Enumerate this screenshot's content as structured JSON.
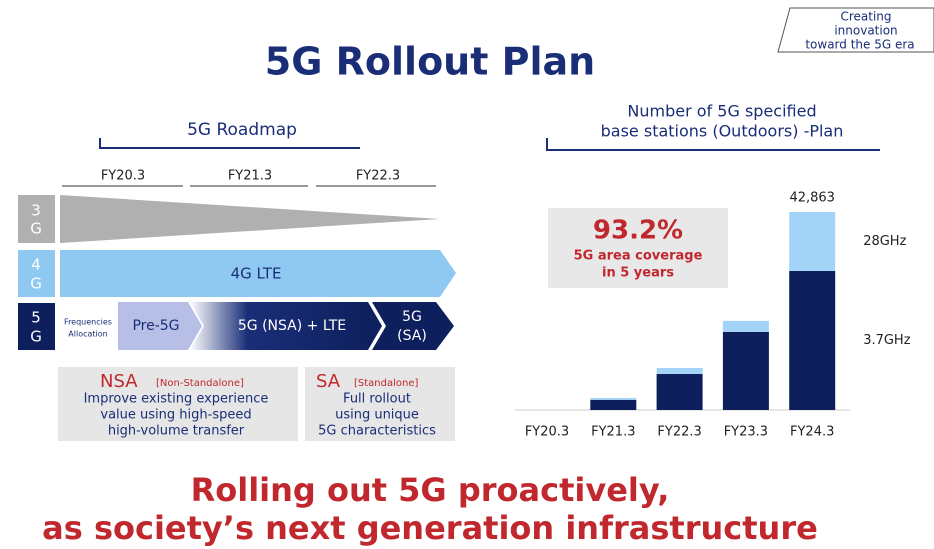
{
  "corner_note": [
    "Creating",
    "innovation",
    "toward the 5G era"
  ],
  "title": "5G Rollout Plan",
  "roadmap": {
    "title": "5G Roadmap",
    "periods": [
      "FY20.3",
      "FY21.3",
      "FY22.3"
    ],
    "rows": [
      {
        "label": [
          "3",
          "G"
        ]
      },
      {
        "label": [
          "4",
          "G"
        ],
        "bar": "4G LTE"
      },
      {
        "label": [
          "5",
          "G"
        ],
        "note": [
          "Frequencies",
          "Allocation"
        ],
        "stages": [
          "Pre-5G",
          "5G (NSA) + LTE",
          [
            "5G",
            "(SA)"
          ]
        ]
      }
    ],
    "boxes": [
      {
        "name": "NSA",
        "tag": "[Non-Standalone]",
        "lines": [
          "Improve existing experience",
          "value using high-speed",
          "high-volume transfer"
        ]
      },
      {
        "name": "SA",
        "tag": "[Standalone]",
        "lines": [
          "Full rollout",
          "using unique",
          "5G characteristics"
        ]
      }
    ]
  },
  "chart_data": {
    "type": "stacked_bar",
    "title": [
      "Number of 5G specified",
      "base stations (Outdoors) -Plan"
    ],
    "categories": [
      "FY20.3",
      "FY21.3",
      "FY22.3",
      "FY23.3",
      "FY24.3"
    ],
    "series": [
      {
        "name": "3.7GHz",
        "color": "#0d1f5c",
        "values": [
          0,
          2200,
          7800,
          16900,
          30100
        ]
      },
      {
        "name": "28GHz",
        "color": "#a3d4f7",
        "values": [
          0,
          400,
          1300,
          2400,
          12763
        ]
      }
    ],
    "total": {
      "value": 42863,
      "label": "42,863"
    },
    "callout": {
      "value": "93.2%",
      "lines": [
        "5G area coverage",
        "in 5 years"
      ]
    }
  },
  "footer": [
    "Rolling out 5G proactively,",
    "as society’s next generation infrastructure"
  ]
}
